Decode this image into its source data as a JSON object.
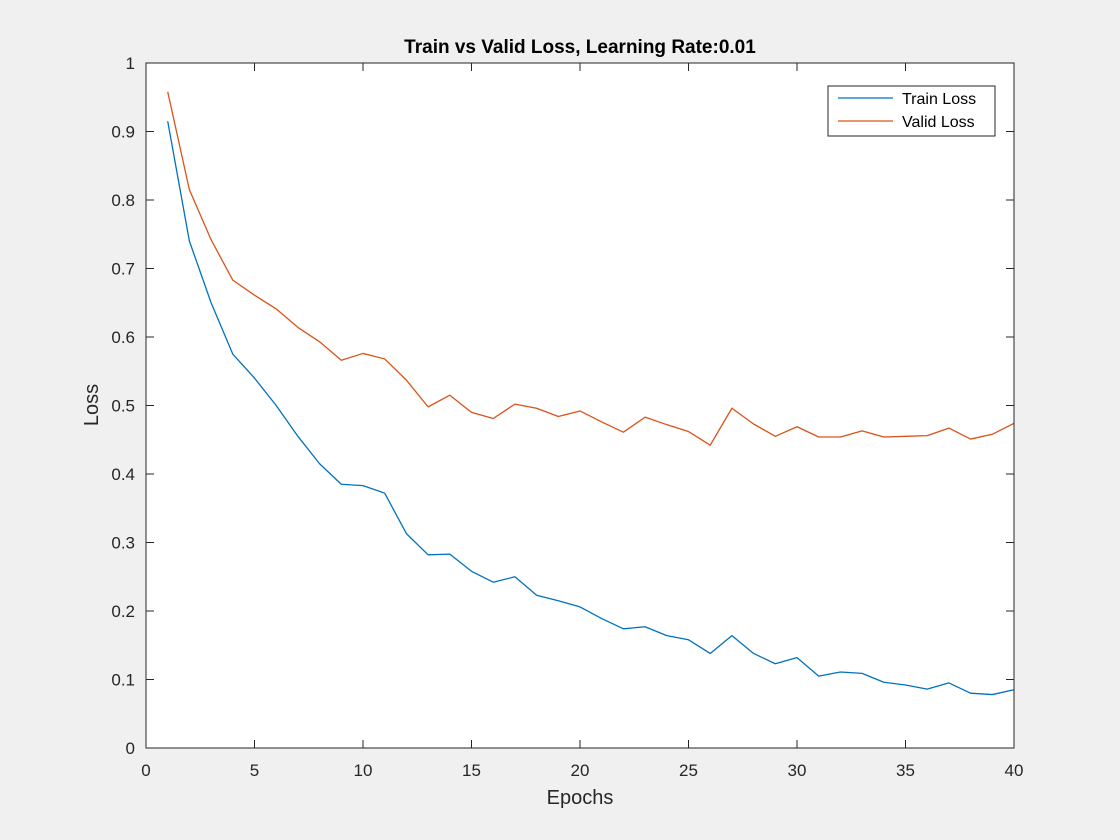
{
  "chart_data": {
    "type": "line",
    "title": "Train vs Valid Loss, Learning Rate:0.01",
    "xlabel": "Epochs",
    "ylabel": "Loss",
    "xlim": [
      0,
      40
    ],
    "ylim": [
      0,
      1
    ],
    "xticks": [
      0,
      5,
      10,
      15,
      20,
      25,
      30,
      35,
      40
    ],
    "yticks": [
      0,
      0.1,
      0.2,
      0.3,
      0.4,
      0.5,
      0.6,
      0.7,
      0.8,
      0.9,
      1
    ],
    "grid": false,
    "legend_position": "top-right",
    "x": [
      1,
      2,
      3,
      4,
      5,
      6,
      7,
      8,
      9,
      10,
      11,
      12,
      13,
      14,
      15,
      16,
      17,
      18,
      19,
      20,
      21,
      22,
      23,
      24,
      25,
      26,
      27,
      28,
      29,
      30,
      31,
      32,
      33,
      34,
      35,
      36,
      37,
      38,
      39,
      40
    ],
    "series": [
      {
        "name": "Train Loss",
        "color": "#0072bd",
        "values": [
          0.915,
          0.74,
          0.65,
          0.575,
          0.54,
          0.5,
          0.455,
          0.415,
          0.385,
          0.383,
          0.372,
          0.313,
          0.282,
          0.283,
          0.258,
          0.242,
          0.25,
          0.223,
          0.215,
          0.206,
          0.189,
          0.174,
          0.177,
          0.164,
          0.158,
          0.138,
          0.164,
          0.138,
          0.123,
          0.132,
          0.105,
          0.111,
          0.109,
          0.096,
          0.092,
          0.086,
          0.095,
          0.08,
          0.078,
          0.085
        ]
      },
      {
        "name": "Valid Loss",
        "color": "#d95319",
        "values": [
          0.958,
          0.815,
          0.742,
          0.683,
          0.661,
          0.641,
          0.614,
          0.593,
          0.566,
          0.576,
          0.568,
          0.537,
          0.498,
          0.515,
          0.49,
          0.481,
          0.502,
          0.496,
          0.484,
          0.492,
          0.476,
          0.461,
          0.483,
          0.472,
          0.462,
          0.442,
          0.496,
          0.473,
          0.455,
          0.469,
          0.454,
          0.454,
          0.463,
          0.454,
          0.455,
          0.456,
          0.467,
          0.451,
          0.458,
          0.474
        ]
      }
    ]
  }
}
